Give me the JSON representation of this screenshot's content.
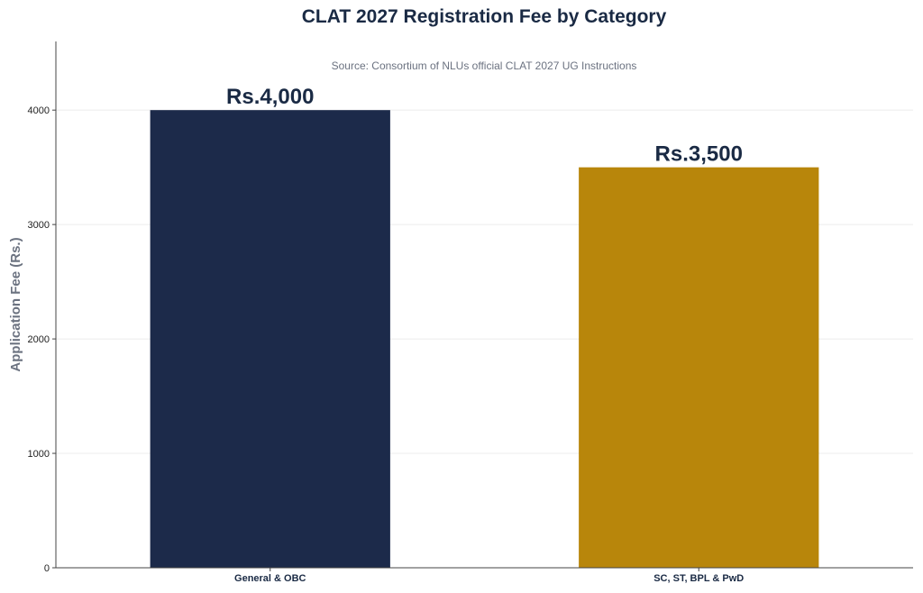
{
  "chart_data": {
    "type": "bar",
    "title": "CLAT 2027 Registration Fee by Category",
    "subtitle": "Source: Consortium of NLUs official CLAT 2027 UG Instructions",
    "xlabel": "",
    "ylabel": "Application Fee (Rs.)",
    "categories": [
      "General & OBC",
      "SC, ST, BPL & PwD"
    ],
    "values": [
      4000,
      3500
    ],
    "data_labels": [
      "Rs.4,000",
      "Rs.3,500"
    ],
    "colors": [
      "#1c2a4a",
      "#b8860b"
    ],
    "yticks": [
      0,
      1000,
      2000,
      3000,
      4000
    ],
    "ylim": [
      0,
      4600
    ],
    "grid": true,
    "legend": "none"
  }
}
